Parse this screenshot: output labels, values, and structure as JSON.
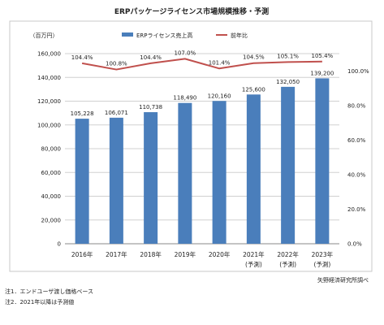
{
  "chart_data": {
    "type": "bar",
    "title": "ERPパッケージライセンス市場規模推移・予測",
    "unit_label": "（百万円）",
    "categories": [
      {
        "year": "2016年",
        "sub": ""
      },
      {
        "year": "2017年",
        "sub": ""
      },
      {
        "year": "2018年",
        "sub": ""
      },
      {
        "year": "2019年",
        "sub": ""
      },
      {
        "year": "2020年",
        "sub": ""
      },
      {
        "year": "2021年",
        "sub": "(予測)"
      },
      {
        "year": "2022年",
        "sub": "(予測)"
      },
      {
        "year": "2023年",
        "sub": "(予測)"
      }
    ],
    "series": [
      {
        "name": "ERPライセンス売上高",
        "type": "bar",
        "axis": "left",
        "color": "#4a7ebb",
        "values": [
          105228,
          106071,
          110738,
          118490,
          120160,
          125600,
          132050,
          139200
        ],
        "labels": [
          "105,228",
          "106,071",
          "110,738",
          "118,490",
          "120,160",
          "125,600",
          "132,050",
          "139,200"
        ]
      },
      {
        "name": "前年比",
        "type": "line",
        "axis": "right",
        "color": "#c0504d",
        "values": [
          104.4,
          100.8,
          104.4,
          107.0,
          101.4,
          104.5,
          105.1,
          105.4
        ],
        "labels": [
          "104.4%",
          "100.8%",
          "104.4%",
          "107.0%",
          "101.4%",
          "104.5%",
          "105.1%",
          "105.4%"
        ]
      }
    ],
    "left_axis": {
      "ylim": [
        0,
        160000
      ],
      "ticks": [
        "0",
        "20,000",
        "40,000",
        "60,000",
        "80,000",
        "100,000",
        "120,000",
        "140,000",
        "160,000"
      ]
    },
    "right_axis": {
      "ylim": [
        0,
        110
      ],
      "ticks": [
        "0.0%",
        "20.0%",
        "40.0%",
        "60.0%",
        "80.0%",
        "100.0%"
      ]
    },
    "grid": true,
    "legend_position": "top"
  },
  "source": "矢野経済研究所調べ",
  "notes": [
    "注1．エンドユーザ渡し価格ベース",
    "注2．2021年以降は予測値"
  ],
  "colors": {
    "bar": "#4a7ebb",
    "line": "#c0504d",
    "grid": "#d0d0d0",
    "frame": "#c8c8c8"
  }
}
